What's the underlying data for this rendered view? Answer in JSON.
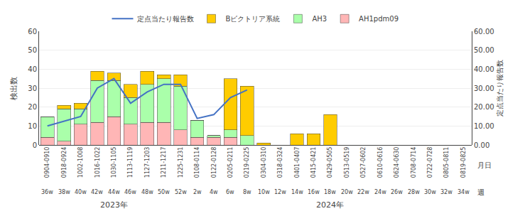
{
  "chart_data": {
    "type": "bar",
    "stacked": true,
    "categories": [
      "0904-0910",
      "0918-0924",
      "1002-1008",
      "1016-1022",
      "1030-1105",
      "1113-1119",
      "1127-1203",
      "1211-1217",
      "1225-1231",
      "0108-0114",
      "0122-0128",
      "0205-0211",
      "0219-0225",
      "0304-0310",
      "0318-0324",
      "0401-0407",
      "0415-0421",
      "0429-0505",
      "0513-0519",
      "0527-0602",
      "0610-0616",
      "0624-0630",
      "0708-0714",
      "0722-0728",
      "0805-0811",
      "0819-0825"
    ],
    "category_title": "月日",
    "weeks": [
      "36w",
      "38w",
      "40w",
      "42w",
      "44w",
      "46w",
      "48w",
      "50w",
      "52w",
      "2w",
      "4w",
      "6w",
      "8w",
      "10w",
      "12w",
      "14w",
      "16w",
      "18w",
      "20w",
      "22w",
      "24w",
      "26w",
      "28w",
      "30w",
      "32w",
      "34w"
    ],
    "weeks_title": "週",
    "year_groups": [
      {
        "label": "2023年",
        "from": "0904-0910",
        "to": "1225-1231"
      },
      {
        "label": "2024年",
        "from": "0108-0114",
        "to": "0819-0825"
      }
    ],
    "ylabel": "検出数",
    "y2label": "定点当たり報告数",
    "ylim": [
      0,
      60
    ],
    "yticks": [
      0,
      10,
      20,
      30,
      40,
      50,
      60
    ],
    "y2lim": [
      0,
      60
    ],
    "y2ticks": [
      {
        "value": 0,
        "label": "0.00"
      },
      {
        "value": 10,
        "label": "10.00"
      },
      {
        "value": 20,
        "label": "20.00"
      },
      {
        "value": 30,
        "label": "30.00"
      },
      {
        "value": 40,
        "label": "40.00"
      },
      {
        "value": 50,
        "label": "50.00"
      },
      {
        "value": 60,
        "label": "60.00"
      }
    ],
    "grid": true,
    "legend": "top",
    "series": [
      {
        "name": "AH1pdm09",
        "color": "#FFB6B6",
        "values": [
          4,
          2,
          11,
          12,
          15,
          11,
          12,
          12,
          8,
          4,
          4,
          4,
          0,
          0,
          0,
          0,
          0,
          0,
          0,
          0,
          0,
          0,
          0,
          0,
          0,
          0
        ]
      },
      {
        "name": "AH3",
        "color": "#AAFFAA",
        "values": [
          11,
          17,
          8,
          22,
          19,
          14,
          20,
          23,
          23,
          9,
          1,
          4,
          5,
          0,
          0,
          0,
          0,
          0,
          0,
          0,
          0,
          0,
          0,
          0,
          0,
          0
        ]
      },
      {
        "name": "Bビクトリア系統",
        "color": "#FFCC00",
        "values": [
          0,
          2,
          3,
          5,
          4,
          7,
          7,
          2,
          6,
          0,
          0,
          27,
          26,
          1,
          0,
          6,
          6,
          16,
          0,
          0,
          0,
          0,
          0,
          0,
          0,
          0
        ]
      },
      {
        "name": "定点当たり報告数",
        "type": "line",
        "axis": "y2",
        "color": "#4472C4",
        "values": [
          10,
          null,
          15,
          30,
          35,
          22,
          28,
          32,
          32,
          14,
          16,
          25,
          29,
          null,
          null,
          null,
          null,
          null,
          null,
          null,
          null,
          null,
          null,
          null,
          null,
          null
        ]
      }
    ]
  }
}
